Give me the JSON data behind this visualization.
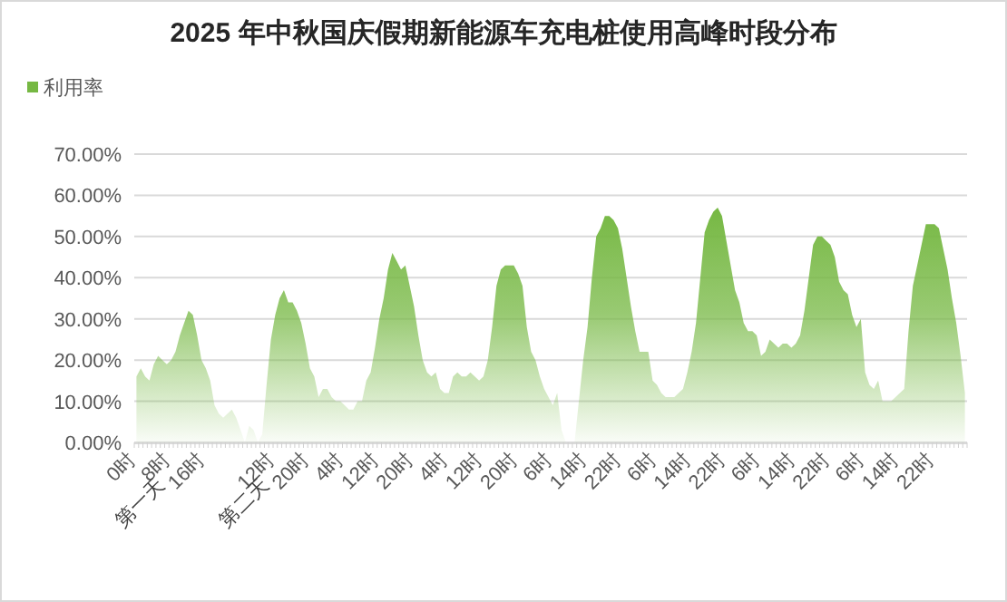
{
  "chart_data": {
    "type": "area",
    "title": "2025 年中秋国庆假期新能源车充电桩使用高峰时段分布",
    "categories": [
      "0时",
      null,
      null,
      null,
      null,
      null,
      null,
      null,
      "8时",
      null,
      null,
      null,
      null,
      null,
      null,
      null,
      "16时",
      null,
      null,
      null,
      null,
      null,
      null,
      null,
      null,
      null,
      null,
      null,
      null,
      null,
      null,
      null,
      "12时",
      null,
      null,
      null,
      null,
      null,
      null,
      null,
      "20时",
      null,
      null,
      null,
      null,
      null,
      null,
      null,
      "4时",
      null,
      null,
      null,
      null,
      null,
      null,
      null,
      "12时",
      null,
      null,
      null,
      null,
      null,
      null,
      null,
      "20时",
      null,
      null,
      null,
      null,
      null,
      null,
      null,
      "4时",
      null,
      null,
      null,
      null,
      null,
      null,
      null,
      "12时",
      null,
      null,
      null,
      null,
      null,
      null,
      null,
      "20时",
      null,
      null,
      null,
      null,
      null,
      null,
      null,
      "6时",
      null,
      null,
      null,
      null,
      null,
      null,
      null,
      "14时",
      null,
      null,
      null,
      null,
      null,
      null,
      null,
      "22时",
      null,
      null,
      null,
      null,
      null,
      null,
      null,
      "6时",
      null,
      null,
      null,
      null,
      null,
      null,
      null,
      "14时",
      null,
      null,
      null,
      null,
      null,
      null,
      null,
      "22时",
      null,
      null,
      null,
      null,
      null,
      null,
      null,
      "6时",
      null,
      null,
      null,
      null,
      null,
      null,
      null,
      "14时",
      null,
      null,
      null,
      null,
      null,
      null,
      null,
      "22时",
      null,
      null,
      null,
      null,
      null,
      null,
      null,
      "6时",
      null,
      null,
      null,
      null,
      null,
      null,
      null,
      "14时",
      null,
      null,
      null,
      null,
      null,
      null,
      null,
      "22时",
      null,
      null,
      null,
      null,
      null,
      null,
      null
    ],
    "series": [
      {
        "name": "利用率",
        "color": "#76b843",
        "values": [
          16,
          18,
          16,
          15,
          19,
          21,
          20,
          19,
          20,
          22,
          26,
          29,
          32,
          31,
          26,
          20,
          18,
          15,
          9,
          7,
          6,
          7,
          8,
          6,
          3,
          0,
          4,
          3,
          0,
          2,
          14,
          25,
          31,
          35,
          37,
          34,
          34,
          32,
          29,
          24,
          18,
          16,
          11,
          13,
          13,
          11,
          10,
          10,
          9,
          8,
          8,
          10,
          10,
          15,
          17,
          23,
          30,
          35,
          42,
          46,
          44,
          42,
          43,
          38,
          33,
          26,
          20,
          17,
          16,
          17,
          13,
          12,
          12,
          16,
          17,
          16,
          16,
          17,
          16,
          15,
          16,
          20,
          28,
          38,
          42,
          43,
          43,
          43,
          41,
          38,
          28,
          22,
          20,
          16,
          13,
          11,
          9,
          12,
          3,
          0,
          0,
          0,
          10,
          20,
          28,
          40,
          50,
          52,
          55,
          55,
          54,
          52,
          47,
          40,
          33,
          27,
          22,
          22,
          22,
          15,
          14,
          12,
          11,
          11,
          11,
          12,
          13,
          17,
          22,
          29,
          40,
          51,
          54,
          56,
          57,
          55,
          49,
          43,
          37,
          34,
          29,
          27,
          27,
          26,
          21,
          22,
          25,
          24,
          23,
          24,
          24,
          23,
          24,
          26,
          32,
          40,
          48,
          50,
          50,
          49,
          48,
          45,
          39,
          37,
          36,
          31,
          28,
          30,
          17,
          14,
          13,
          15,
          10,
          10,
          10,
          11,
          12,
          13,
          27,
          38,
          43,
          48,
          53,
          53,
          53,
          52,
          47,
          42,
          35,
          29,
          21,
          12
        ]
      }
    ],
    "ylim": [
      0,
      70
    ],
    "yticks": [
      {
        "value": 0,
        "label": "0.00%"
      },
      {
        "value": 10,
        "label": "10.00%"
      },
      {
        "value": 20,
        "label": "20.00%"
      },
      {
        "value": 30,
        "label": "30.00%"
      },
      {
        "value": 40,
        "label": "40.00%"
      },
      {
        "value": 50,
        "label": "50.00%"
      },
      {
        "value": 60,
        "label": "60.00%"
      },
      {
        "value": 70,
        "label": "70.00%"
      }
    ],
    "grid": "y",
    "legend": "top left",
    "annotations": [
      "第一天",
      "第二天"
    ]
  }
}
